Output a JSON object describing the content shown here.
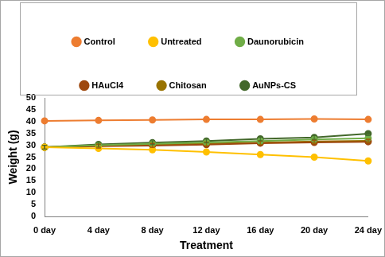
{
  "chart_data": {
    "type": "line",
    "x_label": "Treatment",
    "y_label": "Weight (g)",
    "categories": [
      "0 day",
      "4 day",
      "8 day",
      "12 day",
      "16 day",
      "20 day",
      "24 day"
    ],
    "ylim": [
      0,
      50
    ],
    "yticks": [
      0,
      5,
      10,
      15,
      20,
      25,
      30,
      35,
      40,
      45,
      50
    ],
    "grid": false,
    "legend": "top",
    "marker": "circle",
    "series": [
      {
        "name": "Control",
        "color": "#ed7d31",
        "values": [
          40.3,
          40.5,
          40.7,
          40.9,
          40.9,
          41.1,
          40.9
        ],
        "errors": [
          0.2,
          0.2,
          0.2,
          0.2,
          0.2,
          0.2,
          0.2
        ]
      },
      {
        "name": "Untreated",
        "color": "#ffc000",
        "values": [
          29.2,
          28.7,
          28.1,
          27.2,
          26.1,
          25.0,
          23.4
        ],
        "errors": [
          0.9,
          0.9,
          0.9,
          0.9,
          0.9,
          0.9,
          0.9
        ]
      },
      {
        "name": "Daunorubicin",
        "color": "#70ad47",
        "values": [
          29.2,
          30.0,
          30.6,
          31.2,
          31.8,
          32.5,
          33.0
        ],
        "errors": [
          0.8,
          0.8,
          0.8,
          0.8,
          0.8,
          0.8,
          0.8
        ]
      },
      {
        "name": "HAuCl4",
        "color": "#9e480e",
        "values": [
          29.2,
          29.6,
          29.9,
          30.3,
          30.9,
          31.2,
          31.5
        ],
        "errors": [
          0.8,
          0.8,
          0.8,
          0.8,
          0.8,
          0.8,
          0.8
        ]
      },
      {
        "name": "Chitosan",
        "color": "#997300",
        "values": [
          29.2,
          29.8,
          30.3,
          30.7,
          31.1,
          31.6,
          31.9
        ],
        "errors": [
          0.8,
          0.8,
          0.8,
          0.8,
          0.8,
          0.8,
          0.8
        ]
      },
      {
        "name": "AuNPs-CS",
        "color": "#43682b",
        "values": [
          29.2,
          30.4,
          31.1,
          31.8,
          32.7,
          33.3,
          34.9
        ],
        "errors": [
          0.8,
          0.8,
          0.8,
          0.8,
          0.8,
          0.8,
          0.8
        ]
      }
    ]
  }
}
